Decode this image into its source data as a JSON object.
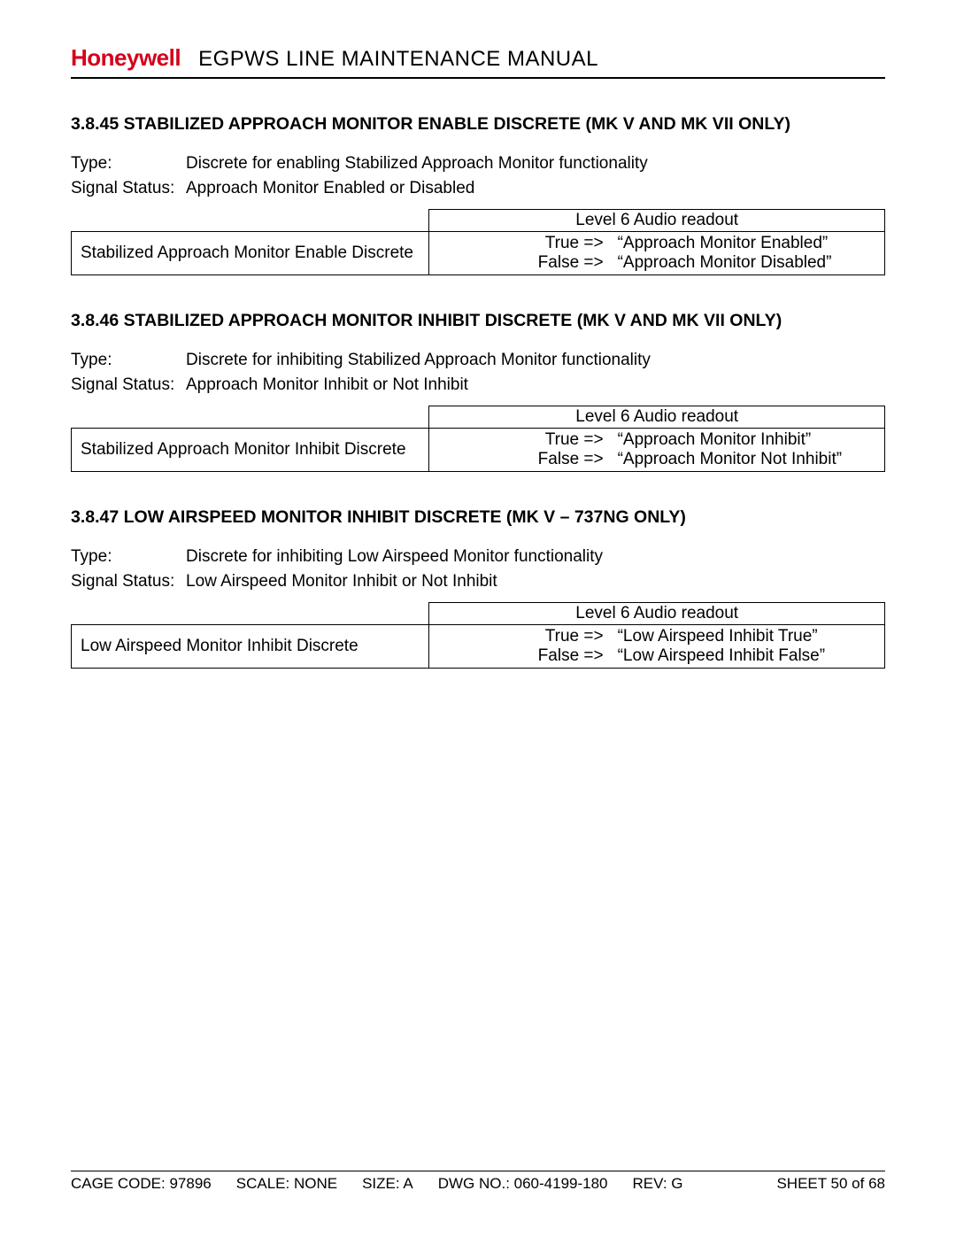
{
  "header": {
    "logo_text": "Honeywell",
    "doc_title": "EGPWS LINE MAINTENANCE MANUAL"
  },
  "sections": [
    {
      "number": "3.8.45",
      "title": "STABILIZED APPROACH MONITOR ENABLE DISCRETE (MK V AND MK VII ONLY)",
      "type_label": "Type:",
      "type_value": "Discrete for enabling Stabilized Approach Monitor functionality",
      "status_label": "Signal Status:",
      "status_value": "Approach Monitor Enabled or Disabled",
      "readout_head": "Level 6 Audio readout",
      "row_name": "Stabilized Approach Monitor Enable Discrete",
      "true_label": "True =>",
      "true_value": "“Approach Monitor Enabled”",
      "false_label": "False =>",
      "false_value": "“Approach Monitor Disabled”"
    },
    {
      "number": "3.8.46",
      "title": "STABILIZED APPROACH MONITOR INHIBIT DISCRETE (MK V AND MK VII ONLY)",
      "type_label": "Type:",
      "type_value": "Discrete for inhibiting Stabilized Approach Monitor functionality",
      "status_label": "Signal Status:",
      "status_value": "Approach Monitor Inhibit or Not Inhibit",
      "readout_head": "Level 6 Audio readout",
      "row_name": "Stabilized Approach Monitor Inhibit Discrete",
      "true_label": "True =>",
      "true_value": "“Approach Monitor Inhibit”",
      "false_label": "False =>",
      "false_value": "“Approach Monitor Not Inhibit”"
    },
    {
      "number": "3.8.47",
      "title": "LOW AIRSPEED MONITOR INHIBIT DISCRETE (MK V – 737NG ONLY)",
      "type_label": "Type:",
      "type_value": "Discrete for inhibiting Low Airspeed Monitor functionality",
      "status_label": "Signal Status:",
      "status_value": "Low Airspeed Monitor Inhibit or Not Inhibit",
      "readout_head": "Level 6 Audio readout",
      "row_name": "Low Airspeed Monitor Inhibit Discrete",
      "true_label": "True =>",
      "true_value": "“Low Airspeed Inhibit True”",
      "false_label": "False =>",
      "false_value": "“Low Airspeed Inhibit False”"
    }
  ],
  "footer": {
    "cage": "CAGE CODE: 97896",
    "scale": "SCALE: NONE",
    "size": "SIZE: A",
    "dwg": "DWG NO.:   060-4199-180",
    "rev": "REV:   G",
    "sheet": "SHEET  50 of 68"
  }
}
